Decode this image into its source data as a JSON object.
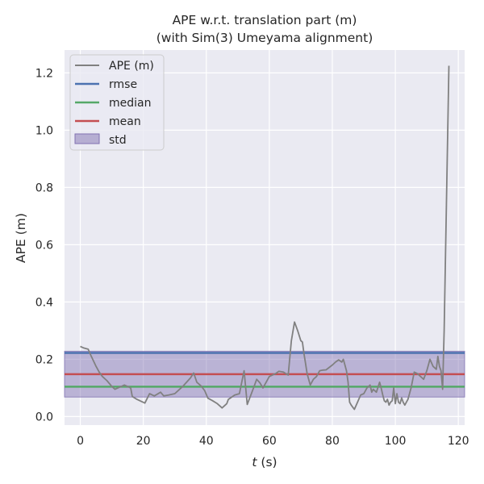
{
  "chart_data": {
    "type": "line",
    "title": "APE w.r.t. translation part (m)",
    "subtitle": "(with Sim(3) Umeyama alignment)",
    "xlabel_italic": "t",
    "xlabel_rest": " (s)",
    "ylabel": "APE (m)",
    "xlim": [
      -5,
      122
    ],
    "ylim": [
      -0.03,
      1.28
    ],
    "x_ticks": [
      0,
      20,
      40,
      60,
      80,
      100,
      120
    ],
    "y_ticks": [
      0.0,
      0.2,
      0.4,
      0.6,
      0.8,
      1.0,
      1.2
    ],
    "x_tick_labels": [
      "0",
      "20",
      "40",
      "60",
      "80",
      "100",
      "120"
    ],
    "y_tick_labels": [
      "0.0",
      "0.2",
      "0.4",
      "0.6",
      "0.8",
      "1.0",
      "1.2"
    ],
    "grid": true,
    "legend_position": "top-left",
    "legend": [
      "APE (m)",
      "rmse",
      "median",
      "mean",
      "std"
    ],
    "colors": {
      "background": "#eaeaf2",
      "grid": "#ffffff",
      "ape": "#808080",
      "rmse": "#4c72b0",
      "median": "#55a868",
      "mean": "#c44e52",
      "std_fill": "#8172b2"
    },
    "stats": {
      "rmse": 0.222,
      "median": 0.104,
      "mean": 0.148,
      "std_low": 0.068,
      "std_high": 0.228
    },
    "series": [
      {
        "name": "APE (m)",
        "x": [
          0,
          1,
          2.5,
          3.5,
          5,
          6,
          7,
          8.5,
          10,
          11,
          13,
          14,
          15,
          16,
          16.5,
          18,
          20.5,
          22,
          23.5,
          25.5,
          26.5,
          28,
          30,
          32.5,
          35,
          36,
          37,
          38.5,
          39.5,
          40.5,
          42,
          43.5,
          45,
          46.5,
          47,
          49,
          50.5,
          52,
          53,
          55,
          56,
          57,
          58,
          60,
          61,
          62,
          63,
          64.5,
          65.5,
          66,
          67,
          68,
          69,
          70,
          70.5,
          71,
          71.5,
          72,
          73,
          74,
          75,
          76,
          77,
          78,
          80,
          81,
          82,
          83,
          83.5,
          84,
          84.5,
          85,
          85.5,
          86,
          87,
          88,
          89,
          90,
          91,
          92,
          92.5,
          93,
          94,
          95,
          95.5,
          96,
          96.5,
          97,
          97.5,
          98,
          98.5,
          99,
          99.5,
          100,
          100.5,
          101,
          101.5,
          102,
          102.5,
          103,
          104,
          105,
          106,
          107,
          108,
          109,
          110,
          111,
          112,
          113,
          113.5,
          114,
          114.5,
          115,
          115.5,
          117
        ],
        "y": [
          0.245,
          0.24,
          0.235,
          0.21,
          0.175,
          0.155,
          0.14,
          0.125,
          0.105,
          0.095,
          0.105,
          0.11,
          0.105,
          0.1,
          0.07,
          0.06,
          0.047,
          0.08,
          0.072,
          0.085,
          0.072,
          0.075,
          0.08,
          0.105,
          0.135,
          0.152,
          0.12,
          0.105,
          0.09,
          0.064,
          0.055,
          0.045,
          0.03,
          0.045,
          0.06,
          0.075,
          0.08,
          0.16,
          0.042,
          0.1,
          0.13,
          0.118,
          0.1,
          0.14,
          0.145,
          0.15,
          0.158,
          0.155,
          0.148,
          0.145,
          0.265,
          0.33,
          0.3,
          0.265,
          0.26,
          0.22,
          0.185,
          0.15,
          0.11,
          0.13,
          0.14,
          0.16,
          0.162,
          0.163,
          0.18,
          0.19,
          0.198,
          0.19,
          0.2,
          0.18,
          0.16,
          0.12,
          0.05,
          0.04,
          0.025,
          0.05,
          0.075,
          0.08,
          0.1,
          0.11,
          0.085,
          0.095,
          0.085,
          0.12,
          0.1,
          0.075,
          0.055,
          0.05,
          0.06,
          0.04,
          0.05,
          0.055,
          0.1,
          0.045,
          0.08,
          0.05,
          0.045,
          0.065,
          0.05,
          0.04,
          0.06,
          0.1,
          0.155,
          0.15,
          0.14,
          0.13,
          0.16,
          0.2,
          0.175,
          0.165,
          0.21,
          0.175,
          0.16,
          0.095,
          0.3,
          1.225
        ]
      }
    ]
  }
}
